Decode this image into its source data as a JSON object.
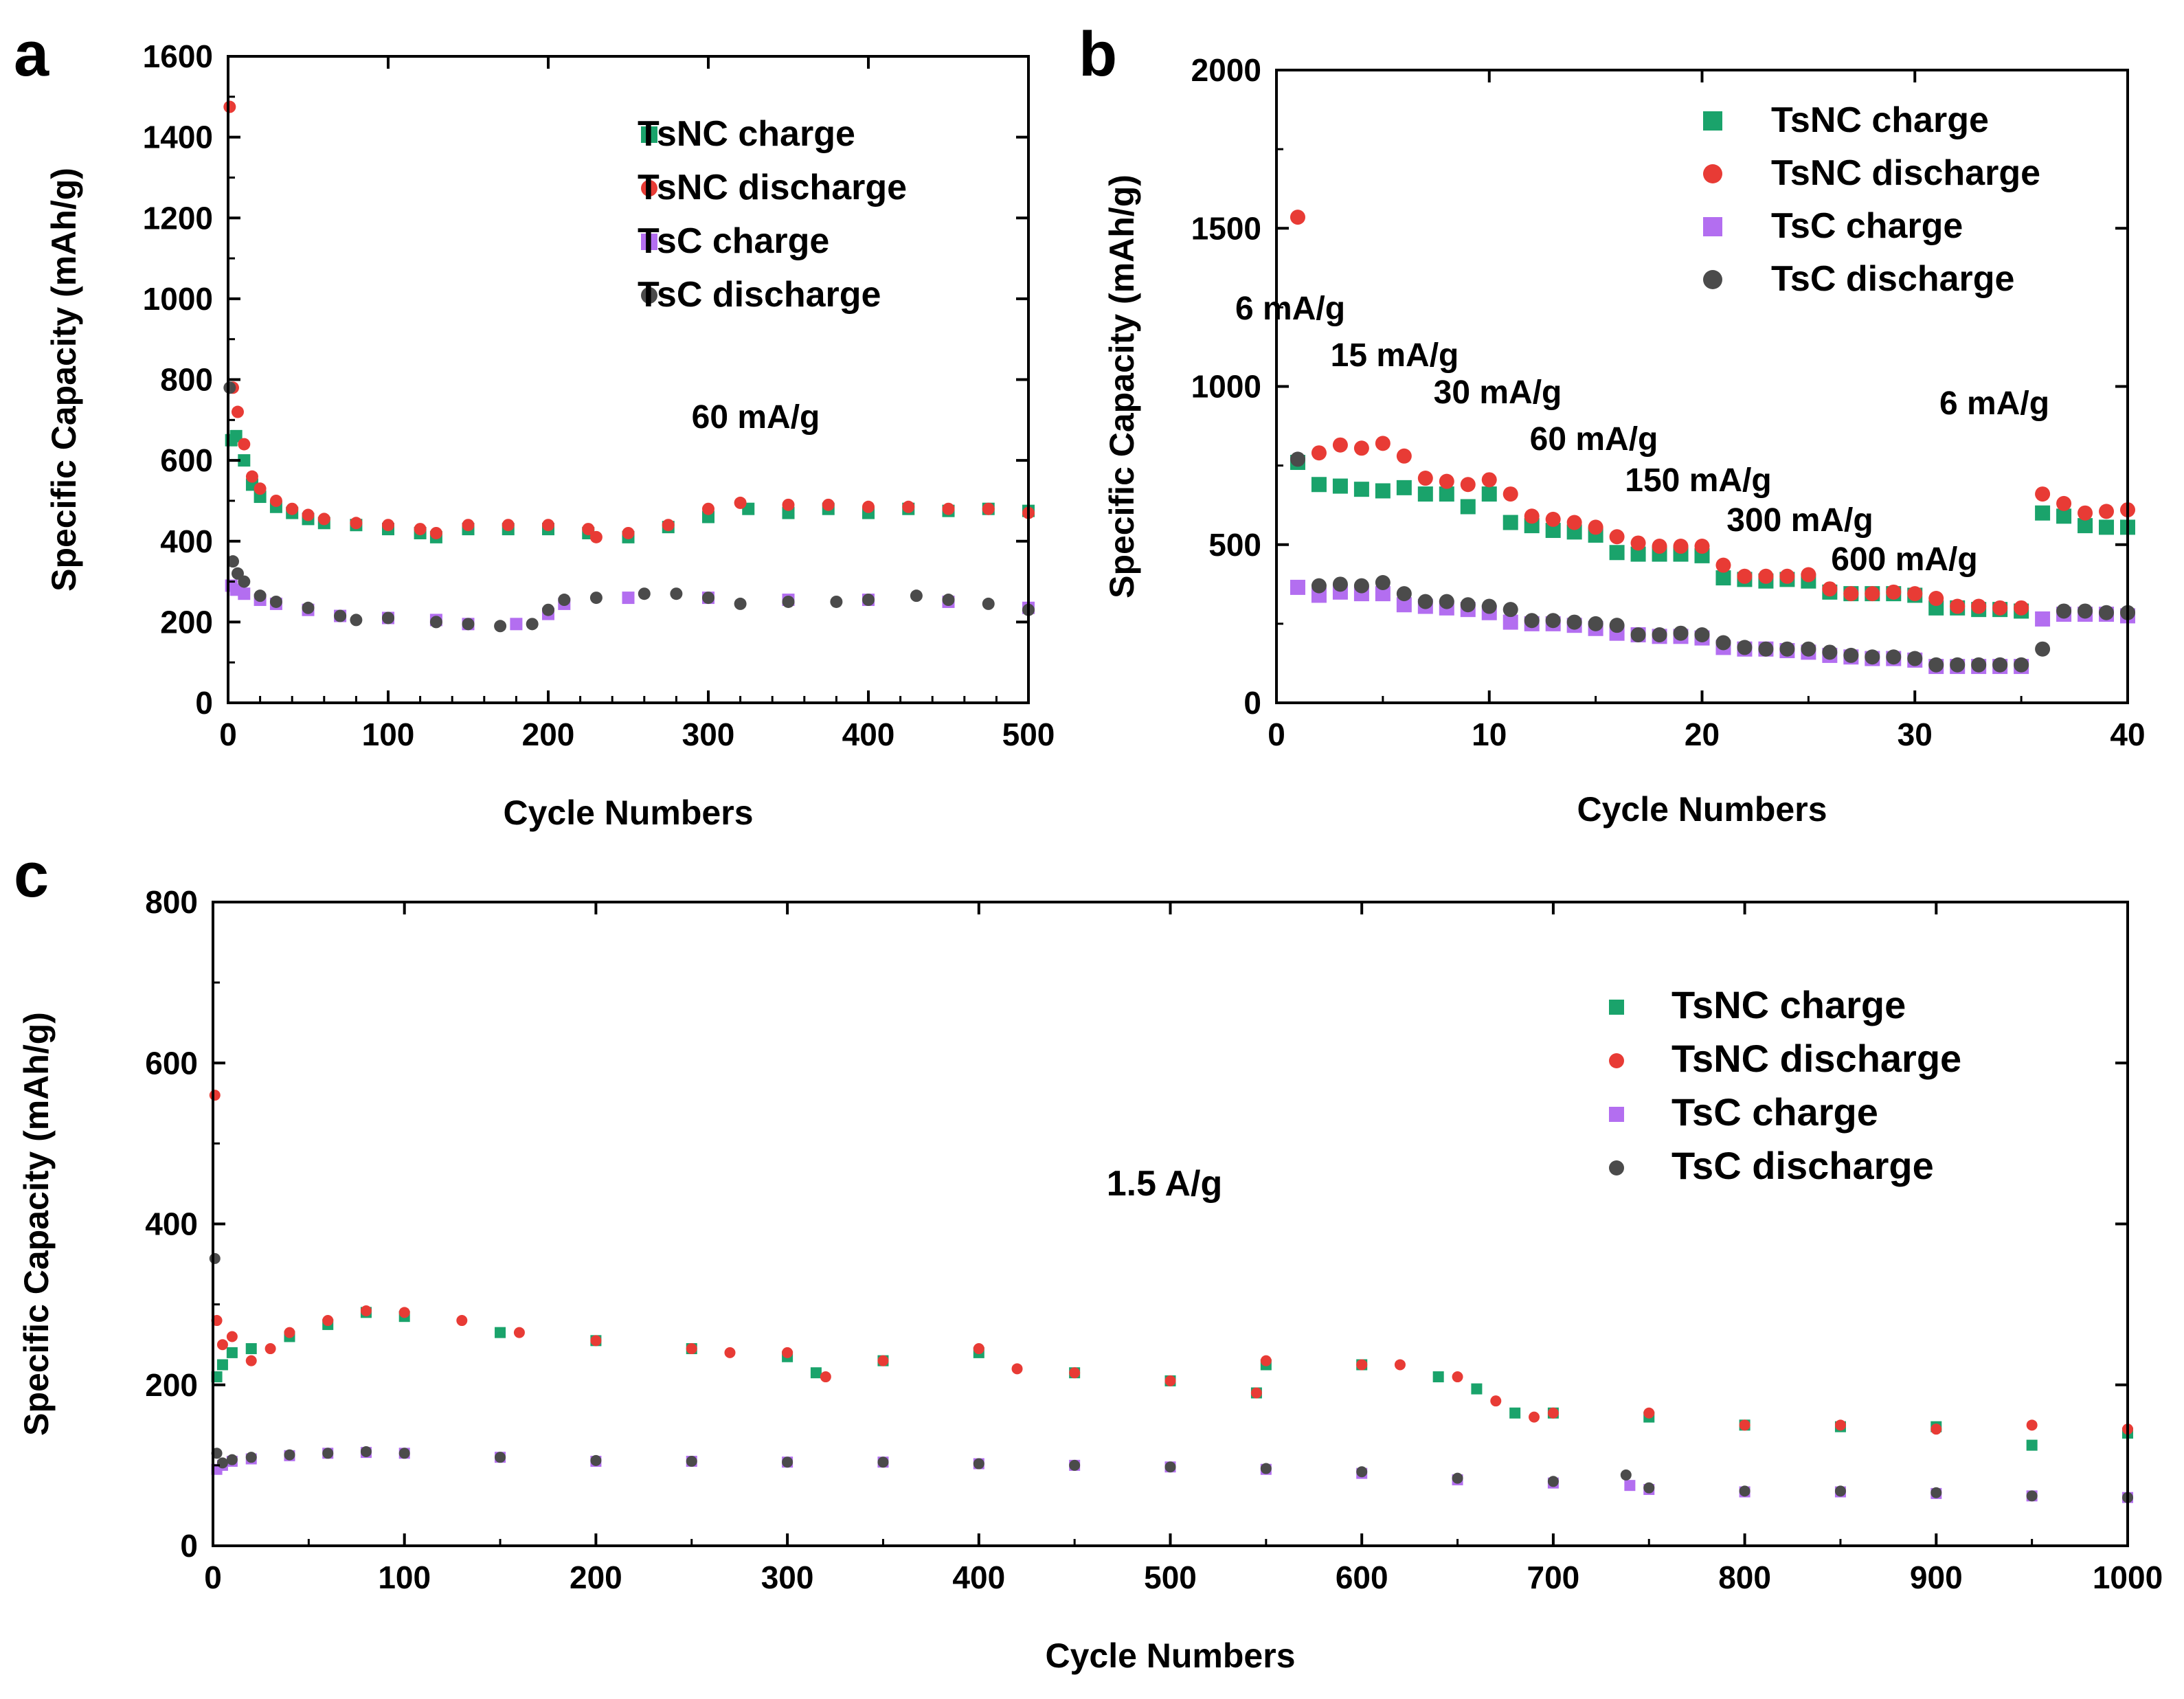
{
  "chart_data": [
    {
      "panel": "a",
      "type": "scatter",
      "xlabel": "Cycle Numbers",
      "ylabel": "Specific Capacity (mAh/g)",
      "xlim": [
        0,
        500
      ],
      "ylim": [
        0,
        1600
      ],
      "xticks": [
        "0",
        "100",
        "200",
        "300",
        "400",
        "500"
      ],
      "yticks": [
        "0",
        "200",
        "400",
        "600",
        "800",
        "1000",
        "1200",
        "1400",
        "1600"
      ],
      "annotation": "60 mA/g",
      "legend": "top-right",
      "series": [
        {
          "name": "TsNC charge",
          "color": "#1aa36b",
          "marker": "square",
          "x": [
            2,
            5,
            10,
            15,
            20,
            30,
            40,
            50,
            60,
            80,
            100,
            120,
            130,
            150,
            175,
            200,
            225,
            250,
            275,
            300,
            325,
            350,
            375,
            400,
            425,
            450,
            475,
            500
          ],
          "y": [
            650,
            660,
            600,
            540,
            510,
            485,
            470,
            455,
            445,
            440,
            430,
            420,
            410,
            430,
            430,
            430,
            420,
            410,
            435,
            460,
            480,
            470,
            480,
            470,
            480,
            475,
            480,
            475
          ]
        },
        {
          "name": "TsNC discharge",
          "color": "#e83b35",
          "marker": "circle",
          "x": [
            1,
            3,
            6,
            10,
            15,
            20,
            30,
            40,
            50,
            60,
            80,
            100,
            120,
            130,
            150,
            175,
            200,
            225,
            230,
            250,
            275,
            300,
            320,
            350,
            375,
            400,
            425,
            450,
            475,
            500
          ],
          "y": [
            1475,
            780,
            720,
            640,
            560,
            530,
            500,
            480,
            465,
            455,
            445,
            440,
            430,
            420,
            440,
            440,
            440,
            430,
            410,
            420,
            440,
            480,
            495,
            490,
            490,
            485,
            485,
            480,
            480,
            470
          ]
        },
        {
          "name": "TsC charge",
          "color": "#b36ef0",
          "marker": "square",
          "x": [
            2,
            5,
            10,
            20,
            30,
            50,
            70,
            100,
            130,
            150,
            180,
            200,
            210,
            250,
            300,
            350,
            400,
            450,
            500
          ],
          "y": [
            290,
            280,
            270,
            255,
            245,
            230,
            215,
            210,
            205,
            195,
            195,
            220,
            245,
            260,
            260,
            255,
            255,
            250,
            235
          ]
        },
        {
          "name": "TsC discharge",
          "color": "#4b4b4b",
          "marker": "circle",
          "x": [
            1,
            3,
            6,
            10,
            20,
            30,
            50,
            70,
            80,
            100,
            130,
            150,
            170,
            190,
            200,
            210,
            230,
            260,
            280,
            300,
            320,
            350,
            380,
            400,
            430,
            450,
            475,
            500
          ],
          "y": [
            780,
            350,
            320,
            300,
            265,
            250,
            235,
            215,
            205,
            210,
            200,
            195,
            190,
            195,
            230,
            255,
            260,
            270,
            270,
            260,
            245,
            250,
            250,
            255,
            265,
            255,
            245,
            230
          ]
        }
      ]
    },
    {
      "panel": "b",
      "type": "scatter",
      "xlabel": "Cycle Numbers",
      "ylabel": "Specific Capacity (mAh/g)",
      "xlim": [
        0,
        40
      ],
      "ylim": [
        0,
        2000
      ],
      "xticks": [
        "0",
        "10",
        "20",
        "30",
        "40"
      ],
      "yticks": [
        "0",
        "500",
        "1000",
        "1500",
        "2000"
      ],
      "annotations": [
        "6 mA/g",
        "15 mA/g",
        "30 mA/g",
        "60 mA/g",
        "150 mA/g",
        "300 mA/g",
        "600 mA/g",
        "6 mA/g"
      ],
      "legend": "top-right",
      "series": [
        {
          "name": "TsNC charge",
          "color": "#1aa36b",
          "marker": "square",
          "x": [
            1,
            2,
            3,
            4,
            5,
            6,
            7,
            8,
            9,
            10,
            11,
            12,
            13,
            14,
            15,
            16,
            17,
            18,
            19,
            20,
            21,
            22,
            23,
            24,
            25,
            26,
            27,
            28,
            29,
            30,
            31,
            32,
            33,
            34,
            35,
            36,
            37,
            38,
            39,
            40
          ],
          "y": [
            760,
            690,
            685,
            675,
            670,
            680,
            660,
            660,
            620,
            660,
            570,
            560,
            545,
            540,
            530,
            475,
            470,
            470,
            470,
            465,
            395,
            390,
            385,
            390,
            385,
            350,
            345,
            345,
            345,
            340,
            300,
            300,
            295,
            295,
            290,
            600,
            590,
            560,
            555,
            555
          ]
        },
        {
          "name": "TsNC discharge",
          "color": "#e83b35",
          "marker": "circle",
          "x": [
            1,
            2,
            3,
            4,
            5,
            6,
            7,
            8,
            9,
            10,
            11,
            12,
            13,
            14,
            15,
            16,
            17,
            18,
            19,
            20,
            21,
            22,
            23,
            24,
            25,
            26,
            27,
            28,
            29,
            30,
            31,
            32,
            33,
            34,
            35,
            36,
            37,
            38,
            39,
            40
          ],
          "y": [
            1535,
            790,
            815,
            805,
            820,
            780,
            710,
            700,
            690,
            705,
            660,
            590,
            580,
            570,
            555,
            525,
            505,
            495,
            495,
            495,
            435,
            400,
            400,
            400,
            405,
            360,
            345,
            345,
            350,
            345,
            330,
            305,
            305,
            300,
            300,
            660,
            630,
            600,
            605,
            610
          ]
        },
        {
          "name": "TsC charge",
          "color": "#b36ef0",
          "marker": "square",
          "x": [
            1,
            2,
            3,
            4,
            5,
            6,
            7,
            8,
            9,
            10,
            11,
            12,
            13,
            14,
            15,
            16,
            17,
            18,
            19,
            20,
            21,
            22,
            23,
            24,
            25,
            26,
            27,
            28,
            29,
            30,
            31,
            32,
            33,
            34,
            35,
            36,
            37,
            38,
            39,
            40
          ],
          "y": [
            365,
            340,
            350,
            345,
            345,
            310,
            305,
            300,
            295,
            285,
            255,
            250,
            250,
            245,
            235,
            220,
            215,
            210,
            210,
            205,
            175,
            170,
            170,
            165,
            160,
            150,
            145,
            140,
            140,
            135,
            115,
            115,
            115,
            115,
            115,
            265,
            280,
            280,
            280,
            275
          ]
        },
        {
          "name": "TsC discharge",
          "color": "#4b4b4b",
          "marker": "circle",
          "x": [
            1,
            2,
            3,
            4,
            5,
            6,
            7,
            8,
            9,
            10,
            11,
            12,
            13,
            14,
            15,
            16,
            17,
            18,
            19,
            20,
            21,
            22,
            23,
            24,
            25,
            26,
            27,
            28,
            29,
            30,
            31,
            32,
            33,
            34,
            35,
            36,
            37,
            38,
            39,
            40
          ],
          "y": [
            770,
            370,
            375,
            370,
            380,
            345,
            320,
            320,
            310,
            305,
            295,
            260,
            260,
            255,
            250,
            245,
            215,
            215,
            220,
            215,
            190,
            175,
            170,
            170,
            170,
            160,
            150,
            145,
            145,
            140,
            120,
            120,
            120,
            120,
            120,
            170,
            290,
            290,
            285,
            285
          ]
        }
      ]
    },
    {
      "panel": "c",
      "type": "scatter",
      "xlabel": "Cycle Numbers",
      "ylabel": "Specific Capacity (mAh/g)",
      "xlim": [
        0,
        1000
      ],
      "ylim": [
        0,
        800
      ],
      "xticks": [
        "0",
        "100",
        "200",
        "300",
        "400",
        "500",
        "600",
        "700",
        "800",
        "900",
        "1000"
      ],
      "yticks": [
        "0",
        "200",
        "400",
        "600",
        "800"
      ],
      "annotation": "1.5 A/g",
      "legend": "top-right",
      "series": [
        {
          "name": "TsNC charge",
          "color": "#1aa36b",
          "marker": "square",
          "x": [
            2,
            5,
            10,
            20,
            40,
            60,
            80,
            100,
            150,
            200,
            250,
            300,
            315,
            350,
            400,
            450,
            500,
            545,
            550,
            600,
            640,
            660,
            680,
            700,
            750,
            800,
            850,
            900,
            950,
            1000
          ],
          "y": [
            210,
            225,
            240,
            245,
            260,
            275,
            290,
            285,
            265,
            255,
            245,
            235,
            215,
            230,
            240,
            215,
            205,
            190,
            225,
            225,
            210,
            195,
            165,
            165,
            160,
            150,
            148,
            148,
            125,
            140
          ]
        },
        {
          "name": "TsNC discharge",
          "color": "#e83b35",
          "marker": "circle",
          "x": [
            1,
            2,
            5,
            10,
            20,
            30,
            40,
            60,
            80,
            100,
            130,
            160,
            200,
            250,
            270,
            300,
            320,
            350,
            400,
            420,
            450,
            500,
            545,
            550,
            600,
            620,
            650,
            670,
            690,
            700,
            750,
            800,
            850,
            900,
            950,
            1000
          ],
          "y": [
            560,
            280,
            250,
            260,
            230,
            245,
            265,
            280,
            292,
            290,
            280,
            265,
            255,
            245,
            240,
            240,
            210,
            230,
            245,
            220,
            215,
            205,
            190,
            230,
            225,
            225,
            210,
            180,
            160,
            165,
            165,
            150,
            150,
            145,
            150,
            145
          ]
        },
        {
          "name": "TsC charge",
          "color": "#b36ef0",
          "marker": "square",
          "x": [
            2,
            5,
            10,
            20,
            40,
            60,
            80,
            100,
            150,
            200,
            250,
            300,
            350,
            400,
            450,
            500,
            550,
            600,
            650,
            700,
            740,
            750,
            800,
            850,
            900,
            950,
            1000
          ],
          "y": [
            95,
            100,
            105,
            108,
            112,
            115,
            116,
            115,
            110,
            105,
            105,
            104,
            104,
            102,
            100,
            98,
            95,
            90,
            82,
            78,
            75,
            70,
            67,
            67,
            65,
            62,
            60
          ]
        },
        {
          "name": "TsC discharge",
          "color": "#4b4b4b",
          "marker": "circle",
          "x": [
            1,
            2,
            5,
            10,
            20,
            40,
            60,
            80,
            100,
            150,
            200,
            250,
            300,
            350,
            400,
            450,
            500,
            550,
            600,
            650,
            700,
            738,
            750,
            800,
            850,
            900,
            950,
            1000
          ],
          "y": [
            357,
            115,
            103,
            107,
            110,
            113,
            115,
            117,
            115,
            110,
            106,
            105,
            104,
            104,
            102,
            100,
            98,
            96,
            92,
            84,
            80,
            88,
            72,
            68,
            68,
            66,
            62,
            60
          ]
        }
      ]
    }
  ]
}
